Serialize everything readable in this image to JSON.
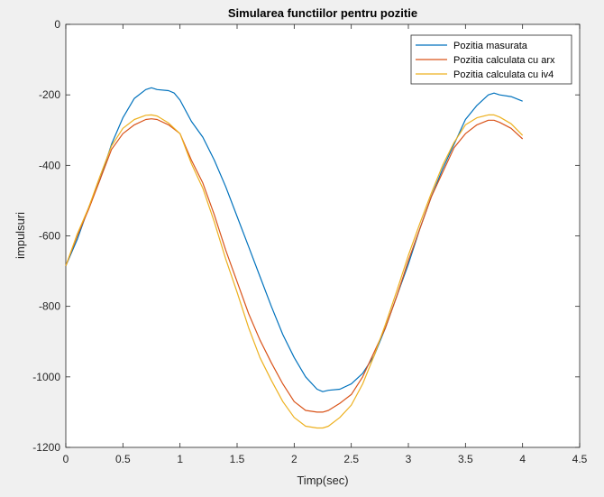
{
  "chart_data": {
    "type": "line",
    "title": "Simularea functiilor pentru pozitie",
    "xlabel": "Timp(sec)",
    "ylabel": "impulsuri",
    "xlim": [
      0,
      4.5
    ],
    "ylim": [
      -1200,
      0
    ],
    "xticks": [
      0,
      0.5,
      1,
      1.5,
      2,
      2.5,
      3,
      3.5,
      4,
      4.5
    ],
    "xtick_labels": [
      "0",
      "0.5",
      "1",
      "1.5",
      "2",
      "2.5",
      "3",
      "3.5",
      "4",
      "4.5"
    ],
    "yticks": [
      0,
      -200,
      -400,
      -600,
      -800,
      -1000,
      -1200
    ],
    "ytick_labels": [
      "0",
      "-200",
      "-400",
      "-600",
      "-800",
      "-1000",
      "-1200"
    ],
    "grid": false,
    "legend_position": "top-right",
    "colors": {
      "background": "#f0f0f0",
      "axes": "#ffffff",
      "axis_line": "#262626"
    },
    "series": [
      {
        "name": "Pozitia masurata",
        "color": "#0072bd",
        "x": [
          0,
          0.1,
          0.2,
          0.3,
          0.4,
          0.5,
          0.6,
          0.7,
          0.75,
          0.8,
          0.9,
          0.95,
          1.0,
          1.1,
          1.2,
          1.3,
          1.4,
          1.5,
          1.6,
          1.7,
          1.8,
          1.9,
          2.0,
          2.1,
          2.2,
          2.25,
          2.3,
          2.4,
          2.5,
          2.6,
          2.7,
          2.8,
          2.9,
          3.0,
          3.1,
          3.2,
          3.3,
          3.4,
          3.5,
          3.6,
          3.7,
          3.75,
          3.8,
          3.9,
          4.0
        ],
        "y": [
          -685,
          -610,
          -520,
          -440,
          -340,
          -265,
          -210,
          -185,
          -180,
          -185,
          -188,
          -195,
          -215,
          -275,
          -320,
          -385,
          -460,
          -545,
          -630,
          -715,
          -800,
          -880,
          -945,
          -1000,
          -1035,
          -1042,
          -1038,
          -1035,
          -1020,
          -990,
          -940,
          -860,
          -770,
          -680,
          -580,
          -490,
          -410,
          -340,
          -270,
          -230,
          -200,
          -195,
          -200,
          -205,
          -218
        ]
      },
      {
        "name": "Pozitia calculata cu arx",
        "color": "#d95319",
        "x": [
          0,
          0.1,
          0.2,
          0.3,
          0.4,
          0.5,
          0.6,
          0.7,
          0.75,
          0.8,
          0.9,
          1.0,
          1.1,
          1.2,
          1.3,
          1.4,
          1.5,
          1.6,
          1.7,
          1.8,
          1.9,
          2.0,
          2.1,
          2.2,
          2.25,
          2.3,
          2.4,
          2.5,
          2.6,
          2.7,
          2.8,
          2.9,
          3.0,
          3.1,
          3.2,
          3.3,
          3.4,
          3.5,
          3.6,
          3.7,
          3.75,
          3.8,
          3.9,
          4.0
        ],
        "y": [
          -685,
          -600,
          -525,
          -440,
          -355,
          -310,
          -285,
          -270,
          -268,
          -270,
          -285,
          -310,
          -385,
          -450,
          -540,
          -640,
          -730,
          -820,
          -895,
          -960,
          -1020,
          -1070,
          -1095,
          -1100,
          -1100,
          -1095,
          -1075,
          -1050,
          -1000,
          -930,
          -860,
          -770,
          -670,
          -580,
          -490,
          -420,
          -350,
          -310,
          -285,
          -272,
          -272,
          -278,
          -295,
          -325
        ]
      },
      {
        "name": "Pozitia calculata cu iv4",
        "color": "#edb120",
        "x": [
          0,
          0.1,
          0.2,
          0.3,
          0.4,
          0.5,
          0.6,
          0.7,
          0.75,
          0.8,
          0.9,
          1.0,
          1.1,
          1.2,
          1.3,
          1.4,
          1.5,
          1.6,
          1.7,
          1.8,
          1.9,
          2.0,
          2.1,
          2.2,
          2.25,
          2.3,
          2.4,
          2.5,
          2.6,
          2.7,
          2.8,
          2.9,
          3.0,
          3.1,
          3.2,
          3.3,
          3.4,
          3.5,
          3.6,
          3.7,
          3.75,
          3.8,
          3.9,
          4.0
        ],
        "y": [
          -685,
          -595,
          -520,
          -430,
          -345,
          -295,
          -270,
          -258,
          -257,
          -260,
          -280,
          -310,
          -395,
          -465,
          -560,
          -665,
          -760,
          -860,
          -945,
          -1010,
          -1070,
          -1115,
          -1140,
          -1145,
          -1145,
          -1140,
          -1115,
          -1080,
          -1020,
          -940,
          -850,
          -755,
          -655,
          -565,
          -480,
          -400,
          -335,
          -285,
          -265,
          -257,
          -257,
          -263,
          -282,
          -315
        ]
      }
    ]
  }
}
